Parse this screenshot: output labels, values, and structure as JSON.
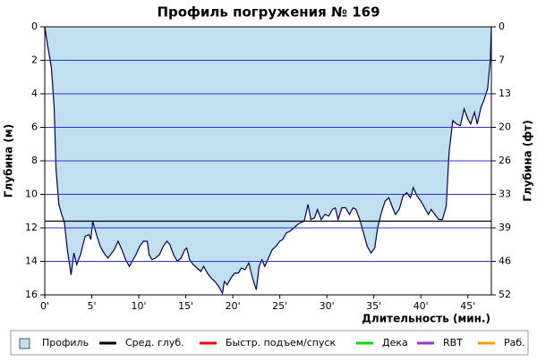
{
  "chart_data": {
    "type": "area",
    "title": "Профиль погружения № 169",
    "y_label": "Глубина (м)",
    "y2_label": "Глубина (фт)",
    "x_label": "Длительность (мин.)",
    "x": [
      0,
      0.3,
      0.7,
      1.0,
      1.2,
      1.5,
      1.8,
      2.1,
      2.4,
      2.8,
      3.1,
      3.4,
      3.8,
      4.3,
      4.7,
      4.9,
      5.1,
      5.5,
      5.9,
      6.3,
      6.7,
      7.0,
      7.4,
      7.8,
      8.2,
      8.6,
      9.0,
      9.3,
      9.7,
      10.1,
      10.5,
      10.9,
      11.1,
      11.4,
      11.8,
      12.2,
      12.6,
      13.0,
      13.3,
      13.7,
      14.1,
      14.5,
      14.9,
      15.1,
      15.4,
      15.8,
      16.2,
      16.6,
      16.9,
      17.3,
      17.7,
      18.1,
      18.5,
      18.9,
      19.1,
      19.4,
      19.8,
      20.2,
      20.6,
      20.9,
      21.3,
      21.7,
      22.1,
      22.5,
      22.8,
      23.1,
      23.4,
      23.8,
      24.2,
      24.6,
      25.0,
      25.3,
      25.7,
      26.1,
      26.5,
      26.9,
      27.2,
      27.6,
      28.0,
      28.3,
      28.7,
      29.0,
      29.4,
      29.8,
      30.2,
      30.6,
      30.9,
      31.2,
      31.6,
      32.0,
      32.4,
      32.8,
      33.1,
      33.5,
      33.9,
      34.3,
      34.7,
      35.1,
      35.4,
      35.8,
      36.2,
      36.6,
      37.0,
      37.3,
      37.7,
      38.1,
      38.5,
      38.9,
      39.2,
      39.6,
      40.0,
      40.4,
      40.8,
      41.1,
      41.5,
      41.9,
      42.3,
      42.7,
      43.0,
      43.4,
      43.8,
      44.2,
      44.6,
      45.0,
      45.3,
      45.7,
      46.0,
      46.4,
      46.7,
      47.1,
      47.4,
      47.5
    ],
    "series": [
      {
        "name": "Профиль",
        "color": "#c0e0f0",
        "line_color": "#000050",
        "values": [
          0,
          1.1,
          2.4,
          4.8,
          8.5,
          10.6,
          11.2,
          11.7,
          13.3,
          14.8,
          13.5,
          14.2,
          13.6,
          12.5,
          12.4,
          12.7,
          11.6,
          12.4,
          13.1,
          13.5,
          13.8,
          13.6,
          13.3,
          12.8,
          13.3,
          13.9,
          14.3,
          14.0,
          13.6,
          13.1,
          12.8,
          12.8,
          13.6,
          13.9,
          13.8,
          13.6,
          13.1,
          12.8,
          13.0,
          13.6,
          14.0,
          13.8,
          13.3,
          13.2,
          13.9,
          14.2,
          14.4,
          14.6,
          14.3,
          14.7,
          15.0,
          15.2,
          15.5,
          15.9,
          15.2,
          15.4,
          15.0,
          14.7,
          14.7,
          14.4,
          14.5,
          14.1,
          15.0,
          15.7,
          14.3,
          13.9,
          14.3,
          13.8,
          13.3,
          13.1,
          12.8,
          12.7,
          12.3,
          12.2,
          12.0,
          11.8,
          11.7,
          11.6,
          10.6,
          11.5,
          11.4,
          10.9,
          11.5,
          11.2,
          11.3,
          10.9,
          10.8,
          11.5,
          10.8,
          10.8,
          11.2,
          10.8,
          10.9,
          11.5,
          12.3,
          13.1,
          13.5,
          13.2,
          12.0,
          11.1,
          10.4,
          10.2,
          10.8,
          11.2,
          10.9,
          10.1,
          9.9,
          10.2,
          9.6,
          10.1,
          10.4,
          10.8,
          11.2,
          10.9,
          11.2,
          11.5,
          11.5,
          10.7,
          7.5,
          5.6,
          5.8,
          5.9,
          4.9,
          5.5,
          5.8,
          5.1,
          5.8,
          4.8,
          4.4,
          3.7,
          1.9,
          0
        ]
      }
    ],
    "reference_lines": [
      {
        "name": "Сред. глуб.",
        "color": "#000000",
        "value": 11.6
      }
    ],
    "extra_legend": [
      {
        "name": "Быстр. подъем/спуск",
        "color": "#ff0000"
      },
      {
        "name": "Дека",
        "color": "#00dd00"
      },
      {
        "name": "RBT",
        "color": "#9933cc"
      },
      {
        "name": "Раб.",
        "color": "#ff9900"
      }
    ],
    "xlim": [
      0,
      47.5
    ],
    "xticks": [
      {
        "value": 0,
        "label": "0'"
      },
      {
        "value": 5,
        "label": "5'"
      },
      {
        "value": 10,
        "label": "10'"
      },
      {
        "value": 15,
        "label": "15'"
      },
      {
        "value": 20,
        "label": "20'"
      },
      {
        "value": 25,
        "label": "25'"
      },
      {
        "value": 30,
        "label": "30'"
      },
      {
        "value": 35,
        "label": "35'"
      },
      {
        "value": 40,
        "label": "40'"
      },
      {
        "value": 45,
        "label": "45'"
      }
    ],
    "ylim": [
      0,
      16
    ],
    "y_inverted": true,
    "yticks": [
      0,
      2,
      4,
      6,
      8,
      10,
      12,
      14,
      16
    ],
    "y2lim": [
      0,
      52.49
    ],
    "y2ticks": [
      0,
      {
        "value": 6.56,
        "label": "7"
      },
      {
        "value": 13.12,
        "label": "13"
      },
      {
        "value": 19.69,
        "label": "20"
      },
      {
        "value": 26.25,
        "label": "26"
      },
      {
        "value": 32.81,
        "label": "33"
      },
      {
        "value": 39.37,
        "label": "39"
      },
      {
        "value": 45.93,
        "label": "46"
      },
      {
        "value": 52.49,
        "label": "52"
      }
    ],
    "grid": true,
    "grid_color": "#3333cc"
  }
}
